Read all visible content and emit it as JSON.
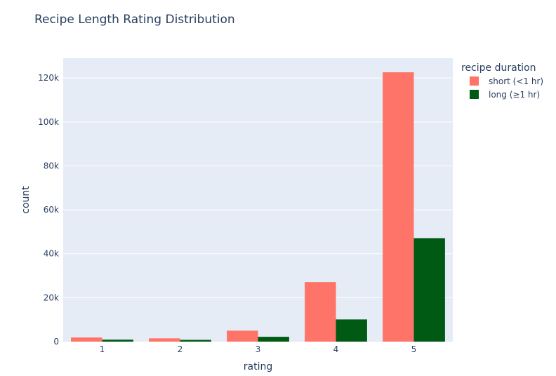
{
  "chart_data": {
    "type": "bar",
    "title": "Recipe Length Rating Distribution",
    "xlabel": "rating",
    "ylabel": "count",
    "categories": [
      "1",
      "2",
      "3",
      "4",
      "5"
    ],
    "series": [
      {
        "name": "short (<1 hr)",
        "color": "#ff7469",
        "values": [
          1900,
          1500,
          5000,
          27100,
          122600
        ]
      },
      {
        "name": "long (≥1 hr)",
        "color": "#005a14",
        "values": [
          900,
          800,
          2200,
          10100,
          47100
        ]
      }
    ],
    "ylim": [
      0,
      129000
    ],
    "yticks": [
      0,
      20000,
      40000,
      60000,
      80000,
      100000,
      120000
    ],
    "ytick_labels": [
      "0",
      "20k",
      "40k",
      "60k",
      "80k",
      "100k",
      "120k"
    ],
    "legend": {
      "title": "recipe duration",
      "placement": "top-right"
    },
    "grid": true,
    "plot_bg": "#e5ecf6"
  }
}
